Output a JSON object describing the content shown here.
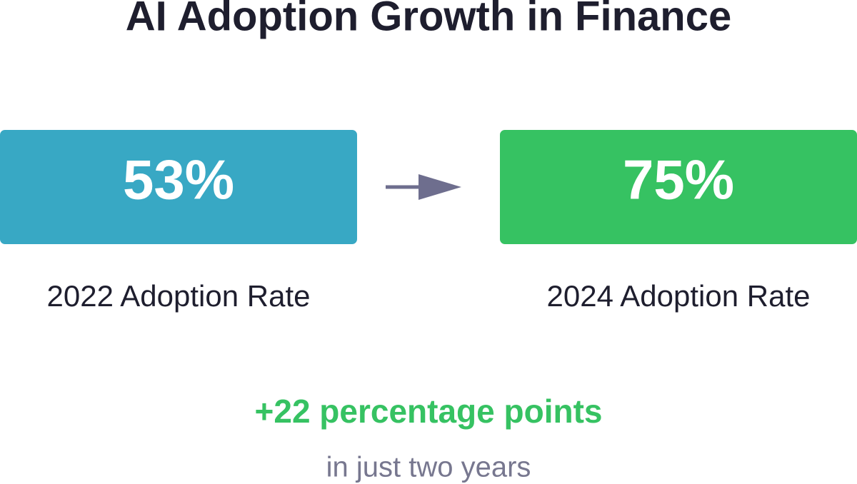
{
  "title": "AI Adoption Growth in Finance",
  "cards": [
    {
      "value": "53%",
      "label": "2022 Adoption Rate"
    },
    {
      "value": "75%",
      "label": "2024 Adoption Rate"
    }
  ],
  "change": "+22 percentage points",
  "note": "in just two years"
}
